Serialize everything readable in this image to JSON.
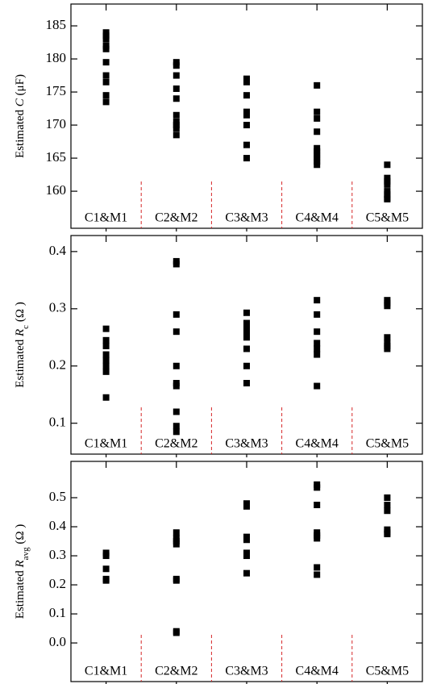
{
  "chart_data": [
    {
      "type": "scatter",
      "y_label": [
        "Estimated ",
        "C",
        " (μF)"
      ],
      "categories": [
        "C1&M1",
        "C2&M2",
        "C3&M3",
        "C4&M4",
        "C5&M5"
      ],
      "values": [
        [
          184,
          183.5,
          183,
          182,
          181.5,
          179.5,
          177.5,
          176.5,
          174.5,
          173.5
        ],
        [
          179.5,
          179,
          177.5,
          175.5,
          174,
          171.5,
          170.5,
          170,
          169.5,
          168.5
        ],
        [
          177,
          176.5,
          174.5,
          172,
          171.5,
          170,
          167,
          165
        ],
        [
          176,
          172,
          171,
          169,
          166.5,
          166,
          165.5,
          165,
          164.5,
          164
        ],
        [
          164,
          162,
          161.5,
          161,
          160,
          159.5,
          159,
          158.8
        ]
      ],
      "color": "#000000",
      "ylim": [
        154.4,
        188.3
      ],
      "yticks": [
        160,
        165,
        170,
        175,
        180,
        185
      ]
    },
    {
      "type": "scatter",
      "y_label": [
        "Estimated ",
        "R",
        "c",
        " (Ω )"
      ],
      "categories": [
        "C1&M1",
        "C2&M2",
        "C3&M3",
        "C4&M4",
        "C5&M5"
      ],
      "values": [
        [
          0.265,
          0.245,
          0.235,
          0.22,
          0.21,
          0.2,
          0.19,
          0.145
        ],
        [
          0.383,
          0.378,
          0.29,
          0.26,
          0.2,
          0.17,
          0.165,
          0.12,
          0.095,
          0.085
        ],
        [
          0.293,
          0.275,
          0.265,
          0.26,
          0.255,
          0.25,
          0.23,
          0.2,
          0.17
        ],
        [
          0.315,
          0.29,
          0.26,
          0.24,
          0.23,
          0.22,
          0.165
        ],
        [
          0.315,
          0.31,
          0.305,
          0.25,
          0.24,
          0.235,
          0.23
        ]
      ],
      "color": "#000000",
      "ylim": [
        0.046,
        0.428
      ],
      "yticks": [
        0.1,
        0.2,
        0.3,
        0.4
      ]
    },
    {
      "type": "scatter",
      "y_label": [
        "Estimated ",
        "R",
        "avg",
        " (Ω )"
      ],
      "categories": [
        "C1&M1",
        "C2&M2",
        "C3&M3",
        "C4&M4",
        "C5&M5"
      ],
      "values": [
        [
          0.31,
          0.3,
          0.255,
          0.22,
          0.215
        ],
        [
          0.38,
          0.36,
          0.35,
          0.34,
          0.22,
          0.215,
          0.04,
          0.035
        ],
        [
          0.48,
          0.47,
          0.365,
          0.355,
          0.31,
          0.3,
          0.24
        ],
        [
          0.545,
          0.535,
          0.475,
          0.38,
          0.37,
          0.36,
          0.26,
          0.235
        ],
        [
          0.5,
          0.475,
          0.455,
          0.39,
          0.38,
          0.375
        ]
      ],
      "color": "#000000",
      "ylim": [
        -0.133,
        0.625
      ],
      "yticks": [
        {
          "value": 0,
          "label": "0.0"
        },
        0.1,
        0.2,
        0.3,
        0.4,
        0.5
      ]
    }
  ]
}
